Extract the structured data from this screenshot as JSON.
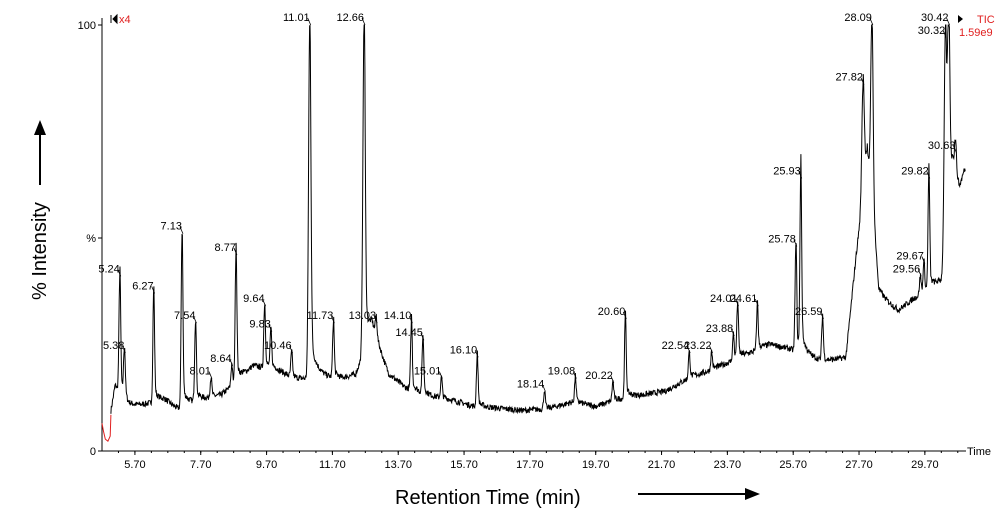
{
  "chart_data": {
    "type": "line",
    "xlabel": "Retention Time (min)",
    "ylabel": "% Intensity",
    "x_unit_label": "Time",
    "xlim": [
      4.7,
      30.95
    ],
    "ylim": [
      0,
      100
    ],
    "x_ticks": [
      5.7,
      7.7,
      9.7,
      11.7,
      13.7,
      15.7,
      17.7,
      19.7,
      21.7,
      23.7,
      25.7,
      27.7,
      29.7
    ],
    "x_tick_labels": [
      "5.70",
      "7.70",
      "9.70",
      "11.70",
      "13.70",
      "15.70",
      "17.70",
      "19.70",
      "21.70",
      "23.70",
      "25.70",
      "27.70",
      "29.70"
    ],
    "y_tick_labels": [
      {
        "value": 100,
        "label": "100"
      },
      {
        "value": 50,
        "label": "%"
      },
      {
        "value": 0,
        "label": "0"
      }
    ],
    "magnification_label": "x4",
    "trace_label": "TIC",
    "max_intensity_label": "1.59e9",
    "colors": {
      "trace": "#000000",
      "magnified_segment": "#e02020",
      "annotation": "#e02020"
    },
    "peaks": [
      {
        "label": "5.24",
        "x": 5.24,
        "y": 41
      },
      {
        "label": "5.38",
        "x": 5.38,
        "y": 23
      },
      {
        "label": "6.27",
        "x": 6.27,
        "y": 37
      },
      {
        "label": "7.13",
        "x": 7.13,
        "y": 51
      },
      {
        "label": "7.54",
        "x": 7.54,
        "y": 30
      },
      {
        "label": "8.01",
        "x": 8.01,
        "y": 17
      },
      {
        "label": "8.64",
        "x": 8.64,
        "y": 20
      },
      {
        "label": "8.77",
        "x": 8.77,
        "y": 46
      },
      {
        "label": "9.64",
        "x": 9.64,
        "y": 34
      },
      {
        "label": "9.83",
        "x": 9.83,
        "y": 28
      },
      {
        "label": "10.46",
        "x": 10.46,
        "y": 23
      },
      {
        "label": "11.01",
        "x": 11.01,
        "y": 100
      },
      {
        "label": "11.73",
        "x": 11.73,
        "y": 30
      },
      {
        "label": "12.66",
        "x": 12.66,
        "y": 100
      },
      {
        "label": "13.03",
        "x": 13.03,
        "y": 30
      },
      {
        "label": "14.10",
        "x": 14.1,
        "y": 30
      },
      {
        "label": "14.45",
        "x": 14.45,
        "y": 26
      },
      {
        "label": "15.01",
        "x": 15.01,
        "y": 17
      },
      {
        "label": "16.10",
        "x": 16.1,
        "y": 22
      },
      {
        "label": "18.14",
        "x": 18.14,
        "y": 14
      },
      {
        "label": "19.08",
        "x": 19.08,
        "y": 17
      },
      {
        "label": "20.22",
        "x": 20.22,
        "y": 16
      },
      {
        "label": "20.60",
        "x": 20.6,
        "y": 31
      },
      {
        "label": "22.54",
        "x": 22.54,
        "y": 23
      },
      {
        "label": "23.22",
        "x": 23.22,
        "y": 23
      },
      {
        "label": "23.88",
        "x": 23.88,
        "y": 27
      },
      {
        "label": "24.01",
        "x": 24.01,
        "y": 34
      },
      {
        "label": "24.61",
        "x": 24.61,
        "y": 34
      },
      {
        "label": "25.78",
        "x": 25.78,
        "y": 48
      },
      {
        "label": "25.93",
        "x": 25.93,
        "y": 64
      },
      {
        "label": "26.59",
        "x": 26.59,
        "y": 31
      },
      {
        "label": "27.82",
        "x": 27.82,
        "y": 86
      },
      {
        "label": "28.09",
        "x": 28.09,
        "y": 100
      },
      {
        "label": "29.56",
        "x": 29.56,
        "y": 41
      },
      {
        "label": "29.67",
        "x": 29.67,
        "y": 44
      },
      {
        "label": "29.82",
        "x": 29.82,
        "y": 64
      },
      {
        "label": "30.32",
        "x": 30.32,
        "y": 97
      },
      {
        "label": "30.42",
        "x": 30.42,
        "y": 100
      },
      {
        "label": "30.63",
        "x": 30.63,
        "y": 70
      }
    ],
    "baseline": [
      [
        4.95,
        8.5
      ],
      [
        5.1,
        15.5
      ],
      [
        5.5,
        10.5
      ],
      [
        6.0,
        11
      ],
      [
        6.6,
        12
      ],
      [
        7.0,
        10
      ],
      [
        7.7,
        12
      ],
      [
        8.3,
        13
      ],
      [
        8.9,
        17
      ],
      [
        9.3,
        20
      ],
      [
        10.0,
        19
      ],
      [
        10.6,
        17
      ],
      [
        11.3,
        17
      ],
      [
        12.0,
        17
      ],
      [
        12.4,
        18
      ],
      [
        12.9,
        28
      ],
      [
        13.4,
        18
      ],
      [
        13.9,
        15
      ],
      [
        14.6,
        13
      ],
      [
        15.3,
        12
      ],
      [
        16.0,
        10.5
      ],
      [
        16.8,
        10
      ],
      [
        17.5,
        9.5
      ],
      [
        18.3,
        10
      ],
      [
        19.0,
        11.5
      ],
      [
        19.7,
        10.5
      ],
      [
        20.3,
        12
      ],
      [
        21.0,
        13
      ],
      [
        21.8,
        14
      ],
      [
        22.5,
        17
      ],
      [
        23.2,
        19
      ],
      [
        23.8,
        21
      ],
      [
        24.4,
        23
      ],
      [
        25.0,
        25
      ],
      [
        25.6,
        24
      ],
      [
        26.2,
        22
      ],
      [
        26.7,
        21
      ],
      [
        27.3,
        22
      ],
      [
        27.6,
        45
      ],
      [
        27.95,
        70
      ],
      [
        28.3,
        36
      ],
      [
        28.9,
        33
      ],
      [
        29.4,
        36
      ],
      [
        29.9,
        38
      ],
      [
        30.2,
        40
      ],
      [
        30.55,
        65
      ],
      [
        30.75,
        60
      ],
      [
        30.9,
        65
      ]
    ]
  }
}
